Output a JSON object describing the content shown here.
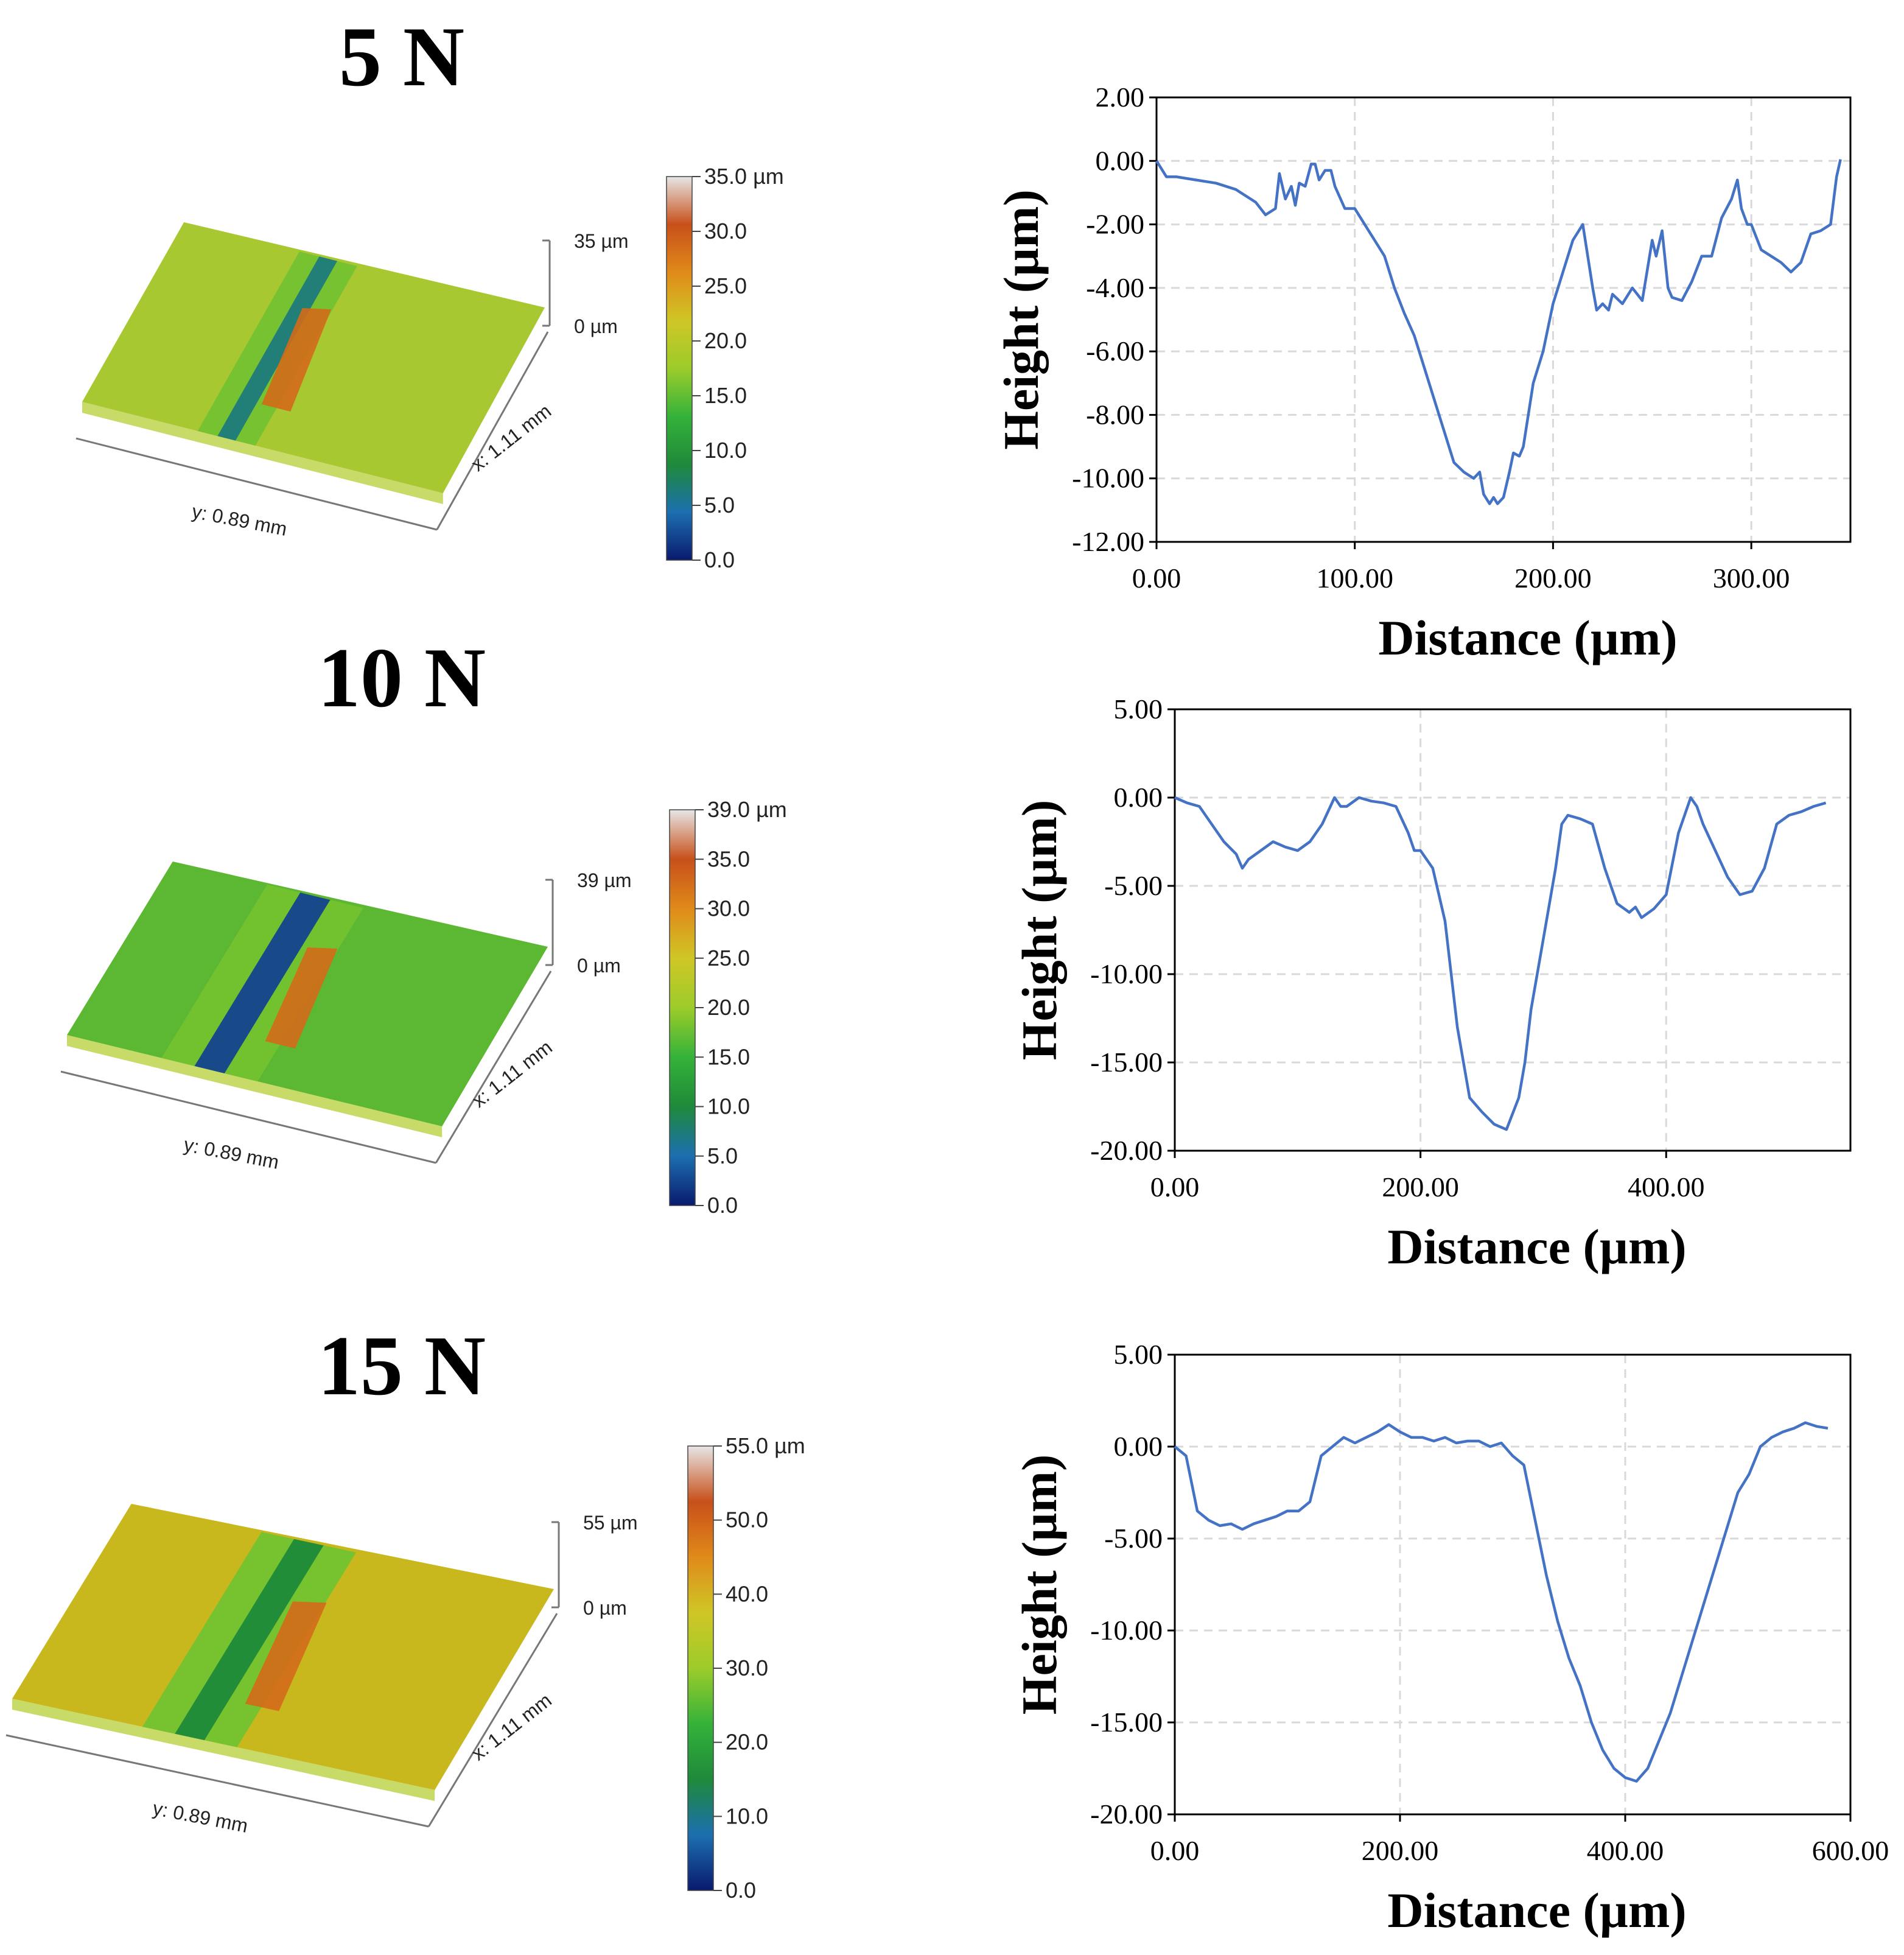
{
  "panels": [
    {
      "title": "5 N",
      "surface": {
        "z_label_top": "35 µm",
        "z_label_bottom": "0 µm",
        "x_axis_label": "x: 1.11 mm",
        "y_axis_label": "y: 0.89 mm",
        "colorbar_ticks": [
          "35.0 µm",
          "30.0",
          "25.0",
          "20.0",
          "15.0",
          "10.0",
          "5.0",
          "0.0"
        ],
        "base_color": "#a8c832",
        "colors": [
          "#0a1a6e",
          "#1c6fb0",
          "#1e8a3a",
          "#35b23a",
          "#9ccc2a",
          "#cfc626",
          "#e08a1a",
          "#c8501a",
          "#e6e6e6"
        ]
      },
      "chart": {
        "type": "line",
        "xlabel": "Distance (µm)",
        "ylabel": "Height (µm)",
        "xlim": [
          0,
          350
        ],
        "ylim": [
          -12,
          2
        ],
        "xticks": [
          0,
          100,
          200,
          300
        ],
        "xtick_labels": [
          "0.00",
          "100.00",
          "200.00",
          "300.00"
        ],
        "yticks": [
          2,
          0,
          -2,
          -4,
          -6,
          -8,
          -10,
          -12
        ],
        "ytick_labels": [
          "2.00",
          "0.00",
          "-2.00",
          "-4.00",
          "-6.00",
          "-8.00",
          "-10.00",
          "-12.00"
        ],
        "series": [
          {
            "name": "profile",
            "color": "#4472c4",
            "x": [
              0,
              5,
              10,
              20,
              30,
              40,
              50,
              55,
              60,
              62,
              65,
              68,
              70,
              72,
              75,
              78,
              80,
              82,
              85,
              88,
              90,
              95,
              100,
              105,
              110,
              115,
              120,
              125,
              130,
              135,
              140,
              145,
              150,
              155,
              160,
              163,
              165,
              168,
              170,
              172,
              175,
              178,
              180,
              183,
              185,
              190,
              195,
              200,
              205,
              210,
              215,
              220,
              222,
              225,
              228,
              230,
              235,
              240,
              245,
              250,
              252,
              255,
              258,
              260,
              265,
              270,
              275,
              280,
              285,
              290,
              293,
              295,
              298,
              300,
              305,
              310,
              315,
              320,
              325,
              330,
              335,
              340,
              343,
              345
            ],
            "y": [
              0,
              -0.5,
              -0.5,
              -0.6,
              -0.7,
              -0.9,
              -1.3,
              -1.7,
              -1.5,
              -0.4,
              -1.2,
              -0.8,
              -1.4,
              -0.7,
              -0.8,
              -0.1,
              -0.1,
              -0.6,
              -0.3,
              -0.3,
              -0.8,
              -1.5,
              -1.5,
              -2.0,
              -2.5,
              -3.0,
              -4.0,
              -4.8,
              -5.5,
              -6.5,
              -7.5,
              -8.5,
              -9.5,
              -9.8,
              -10.0,
              -9.8,
              -10.5,
              -10.8,
              -10.6,
              -10.8,
              -10.6,
              -9.8,
              -9.2,
              -9.3,
              -9.0,
              -7.0,
              -6.0,
              -4.5,
              -3.5,
              -2.5,
              -2.0,
              -4.0,
              -4.7,
              -4.5,
              -4.7,
              -4.2,
              -4.5,
              -4.0,
              -4.4,
              -2.5,
              -3.0,
              -2.2,
              -4.0,
              -4.3,
              -4.4,
              -3.8,
              -3.0,
              -3.0,
              -1.8,
              -1.2,
              -0.6,
              -1.5,
              -2.0,
              -2.0,
              -2.8,
              -3.0,
              -3.2,
              -3.5,
              -3.2,
              -2.3,
              -2.2,
              -2.0,
              -0.5,
              0.05
            ]
          }
        ]
      }
    },
    {
      "title": "10 N",
      "surface": {
        "z_label_top": "39 µm",
        "z_label_bottom": "0 µm",
        "x_axis_label": "x: 1.11 mm",
        "y_axis_label": "y: 0.89 mm",
        "colorbar_ticks": [
          "39.0 µm",
          "35.0",
          "30.0",
          "25.0",
          "20.0",
          "15.0",
          "10.0",
          "5.0",
          "0.0"
        ],
        "base_color": "#5cb832",
        "colors": [
          "#0a1a6e",
          "#1c6fb0",
          "#1e8a3a",
          "#35b23a",
          "#9ccc2a",
          "#cfc626",
          "#e08a1a",
          "#c8501a",
          "#e6e6e6"
        ]
      },
      "chart": {
        "type": "line",
        "xlabel": "Distance (µm)",
        "ylabel": "Height (µm)",
        "xlim": [
          0,
          550
        ],
        "ylim": [
          -20,
          5
        ],
        "xticks": [
          0,
          200,
          400
        ],
        "xtick_labels": [
          "0.00",
          "200.00",
          "400.00"
        ],
        "yticks": [
          5,
          0,
          -5,
          -10,
          -15,
          -20
        ],
        "ytick_labels": [
          "5.00",
          "0.00",
          "-5.00",
          "-10.00",
          "-15.00",
          "-20.00"
        ],
        "series": [
          {
            "name": "profile",
            "color": "#4472c4",
            "x": [
              0,
              10,
              20,
              30,
              40,
              50,
              55,
              60,
              70,
              80,
              90,
              100,
              110,
              120,
              130,
              135,
              140,
              150,
              160,
              170,
              180,
              190,
              195,
              200,
              210,
              220,
              225,
              230,
              235,
              240,
              250,
              260,
              270,
              280,
              285,
              290,
              300,
              310,
              315,
              320,
              330,
              340,
              350,
              360,
              370,
              375,
              380,
              390,
              400,
              410,
              420,
              425,
              430,
              440,
              450,
              460,
              470,
              480,
              490,
              500,
              510,
              520,
              530
            ],
            "y": [
              0,
              -0.3,
              -0.5,
              -1.5,
              -2.5,
              -3.2,
              -4.0,
              -3.5,
              -3.0,
              -2.5,
              -2.8,
              -3.0,
              -2.5,
              -1.5,
              0.0,
              -0.5,
              -0.5,
              0.0,
              -0.2,
              -0.3,
              -0.5,
              -2.0,
              -3.0,
              -3.0,
              -4.0,
              -7.0,
              -10.0,
              -13.0,
              -15.0,
              -17.0,
              -17.8,
              -18.5,
              -18.8,
              -17.0,
              -15.0,
              -12.0,
              -8.0,
              -4.0,
              -1.5,
              -1.0,
              -1.2,
              -1.5,
              -4.0,
              -6.0,
              -6.5,
              -6.2,
              -6.8,
              -6.3,
              -5.5,
              -2.0,
              0.0,
              -0.5,
              -1.5,
              -3.0,
              -4.5,
              -5.5,
              -5.3,
              -4.0,
              -1.5,
              -1.0,
              -0.8,
              -0.5,
              -0.3
            ]
          }
        ]
      }
    },
    {
      "title": "15 N",
      "surface": {
        "z_label_top": "55 µm",
        "z_label_bottom": "0 µm",
        "x_axis_label": "x: 1.11 mm",
        "y_axis_label": "y: 0.89 mm",
        "colorbar_ticks": [
          "55.0 µm",
          "50.0",
          "40.0",
          "30.0",
          "20.0",
          "10.0",
          "0.0"
        ],
        "base_color": "#c8b81e",
        "colors": [
          "#0a1a6e",
          "#1c6fb0",
          "#1e8a3a",
          "#35b23a",
          "#9ccc2a",
          "#cfc626",
          "#e08a1a",
          "#c8501a",
          "#e6e6e6"
        ]
      },
      "chart": {
        "type": "line",
        "xlabel": "Distance (µm)",
        "ylabel": "Height (µm)",
        "xlim": [
          0,
          600
        ],
        "ylim": [
          -20,
          5
        ],
        "xticks": [
          0,
          200,
          400,
          600
        ],
        "xtick_labels": [
          "0.00",
          "200.00",
          "400.00",
          "600.00"
        ],
        "yticks": [
          5,
          0,
          -5,
          -10,
          -15,
          -20
        ],
        "ytick_labels": [
          "5.00",
          "0.00",
          "-5.00",
          "-10.00",
          "-15.00",
          "-20.00"
        ],
        "series": [
          {
            "name": "profile",
            "color": "#4472c4",
            "x": [
              0,
              10,
              15,
              20,
              30,
              40,
              50,
              60,
              70,
              80,
              90,
              100,
              110,
              120,
              130,
              140,
              150,
              160,
              170,
              180,
              190,
              200,
              210,
              220,
              230,
              240,
              250,
              260,
              270,
              280,
              290,
              300,
              310,
              320,
              330,
              340,
              350,
              360,
              370,
              380,
              390,
              400,
              410,
              420,
              430,
              440,
              450,
              460,
              470,
              480,
              490,
              500,
              510,
              520,
              530,
              540,
              550,
              560,
              570,
              580
            ],
            "y": [
              0,
              -0.5,
              -2.0,
              -3.5,
              -4.0,
              -4.3,
              -4.2,
              -4.5,
              -4.2,
              -4.0,
              -3.8,
              -3.5,
              -3.5,
              -3.0,
              -0.5,
              0.0,
              0.5,
              0.2,
              0.5,
              0.8,
              1.2,
              0.8,
              0.5,
              0.5,
              0.3,
              0.5,
              0.2,
              0.3,
              0.3,
              0.0,
              0.2,
              -0.5,
              -1.0,
              -4.0,
              -7.0,
              -9.5,
              -11.5,
              -13.0,
              -15.0,
              -16.5,
              -17.5,
              -18.0,
              -18.2,
              -17.5,
              -16.0,
              -14.5,
              -12.5,
              -10.5,
              -8.5,
              -6.5,
              -4.5,
              -2.5,
              -1.5,
              0.0,
              0.5,
              0.8,
              1.0,
              1.3,
              1.1,
              1.0
            ]
          }
        ]
      }
    }
  ],
  "chart_data": [
    {
      "type": "line",
      "title": "5 N",
      "xlabel": "Distance (µm)",
      "ylabel": "Height (µm)",
      "xlim": [
        0,
        350
      ],
      "ylim": [
        -12,
        2
      ]
    },
    {
      "type": "line",
      "title": "10 N",
      "xlabel": "Distance (µm)",
      "ylabel": "Height (µm)",
      "xlim": [
        0,
        550
      ],
      "ylim": [
        -20,
        5
      ]
    },
    {
      "type": "line",
      "title": "15 N",
      "xlabel": "Distance (µm)",
      "ylabel": "Height (µm)",
      "xlim": [
        0,
        600
      ],
      "ylim": [
        -20,
        5
      ]
    }
  ]
}
